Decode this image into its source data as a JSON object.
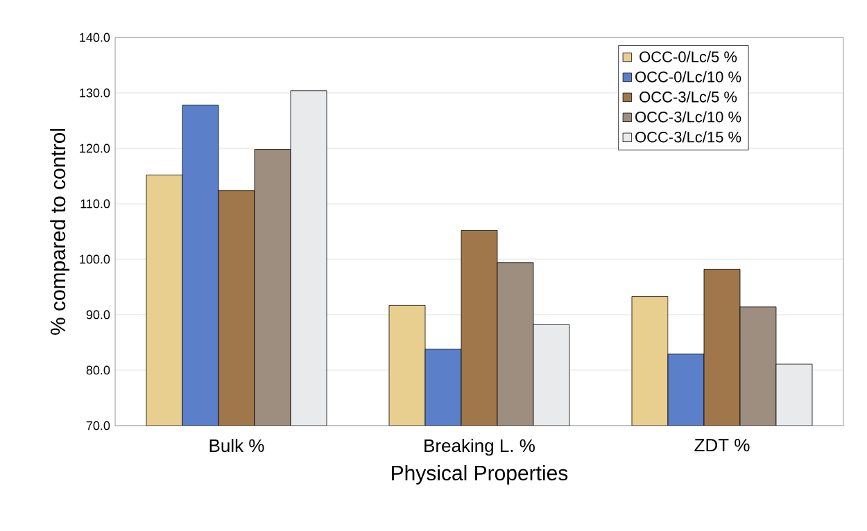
{
  "chart_data": {
    "type": "bar",
    "xlabel": "Physical Properties",
    "ylabel": "% compared to control",
    "categories": [
      "Bulk %",
      "Breaking  L. %",
      "ZDT %"
    ],
    "series": [
      {
        "name": "OCC-0/Lc/5 %",
        "color": "#e8cf8f",
        "values": [
          115.2,
          91.7,
          93.3
        ]
      },
      {
        "name": "OCC-0/Lc/10 %",
        "color": "#5b7fc9",
        "values": [
          127.8,
          83.8,
          82.9
        ]
      },
      {
        "name": "OCC-3/Lc/5 %",
        "color": "#a0774a",
        "values": [
          112.4,
          105.2,
          98.2
        ]
      },
      {
        "name": "OCC-3/Lc/10 %",
        "color": "#9d8e80",
        "values": [
          119.8,
          99.4,
          91.4
        ]
      },
      {
        "name": "OCC-3/Lc/15 %",
        "color": "#e8eaec",
        "values": [
          130.4,
          88.2,
          81.1
        ]
      }
    ],
    "ylim": [
      70,
      140
    ],
    "yticks": [
      {
        "value": 70,
        "label": "70.0"
      },
      {
        "value": 80,
        "label": "80.0"
      },
      {
        "value": 90,
        "label": "90.0"
      },
      {
        "value": 100,
        "label": "100.0"
      },
      {
        "value": 110,
        "label": "110.0"
      },
      {
        "value": 120,
        "label": "120.0"
      },
      {
        "value": 130,
        "label": "130.0"
      },
      {
        "value": 140,
        "label": "140.0"
      }
    ],
    "grid": "y",
    "legend": "top right"
  }
}
